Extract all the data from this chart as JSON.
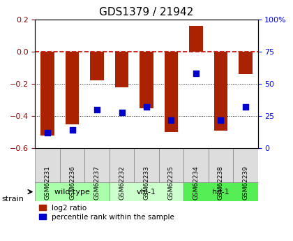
{
  "title": "GDS1379 / 21942",
  "samples": [
    "GSM62231",
    "GSM62236",
    "GSM62237",
    "GSM62232",
    "GSM62233",
    "GSM62235",
    "GSM62234",
    "GSM62238",
    "GSM62239"
  ],
  "log2_ratio": [
    -0.52,
    -0.45,
    -0.18,
    -0.22,
    -0.35,
    -0.5,
    0.16,
    -0.49,
    -0.14
  ],
  "percentile_rank": [
    12,
    14,
    30,
    28,
    32,
    22,
    58,
    22,
    32
  ],
  "groups": [
    {
      "label": "wild type",
      "indices": [
        0,
        1,
        2
      ],
      "color": "#aaffaa"
    },
    {
      "label": "vhl-1",
      "indices": [
        3,
        4,
        5
      ],
      "color": "#ccffcc"
    },
    {
      "label": "hif-1",
      "indices": [
        6,
        7,
        8
      ],
      "color": "#55ee55"
    }
  ],
  "ylim_left": [
    -0.6,
    0.2
  ],
  "ylim_right": [
    0,
    100
  ],
  "yticks_left": [
    -0.6,
    -0.4,
    -0.2,
    0.0,
    0.2
  ],
  "yticks_right": [
    0,
    25,
    50,
    75,
    100
  ],
  "bar_color": "#aa2200",
  "dot_color": "#0000cc",
  "zero_line_color": "#cc0000",
  "grid_color": "#000000",
  "background_color": "#ffffff",
  "plot_bg_color": "#ffffff",
  "label_log2": "log2 ratio",
  "label_pct": "percentile rank within the sample"
}
